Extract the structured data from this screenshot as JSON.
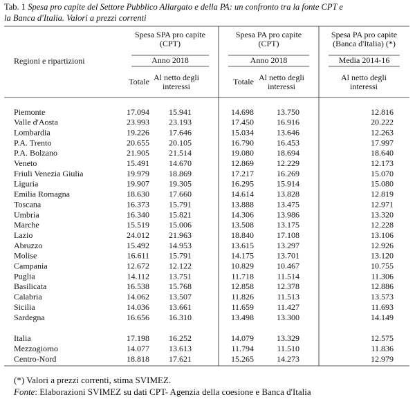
{
  "title": {
    "prefix": "Tab. 1",
    "line1": "Spesa pro capite del Settore Pubblico Allargato e della PA: un confronto tra la fonte CPT e",
    "line2": "la Banca d'Italia. Valori a prezzi correnti"
  },
  "table": {
    "row_header": "Regioni e ripartizioni",
    "groups": [
      {
        "title_lines": [
          "Spesa SPA pro capite",
          "(CPT)"
        ],
        "period": "Anno 2018",
        "columns": [
          [
            "Totale"
          ],
          [
            "Al netto degli",
            "interessi"
          ]
        ]
      },
      {
        "title_lines": [
          "Spesa PA pro capite",
          "(CPT)"
        ],
        "period": "Anno 2018",
        "columns": [
          [
            "Totale"
          ],
          [
            "Al netto degli",
            "interessi"
          ]
        ]
      },
      {
        "title_lines": [
          "Spesa PA pro capite",
          "(Banca d'Italia) (*)"
        ],
        "period": "Media 2014-16",
        "columns": [
          [
            "Al netto degli",
            "interessi"
          ]
        ]
      }
    ],
    "rows": [
      [
        "Piemonte",
        "17.094",
        "15.941",
        "14.698",
        "13.750",
        "12.816"
      ],
      [
        "Valle d'Aosta",
        "23.993",
        "23.193",
        "17.450",
        "16.916",
        "20.222"
      ],
      [
        "Lombardia",
        "19.226",
        "17.646",
        "15.034",
        "13.646",
        "12.263"
      ],
      [
        "P.A. Trento",
        "20.655",
        "20.105",
        "16.790",
        "16.453",
        "17.997"
      ],
      [
        "P.A. Bolzano",
        "21.905",
        "21.514",
        "19.080",
        "18.694",
        "18.640"
      ],
      [
        "Veneto",
        "15.491",
        "14.670",
        "12.869",
        "12.229",
        "12.173"
      ],
      [
        "Friuli Venezia Giulia",
        "19.979",
        "18.869",
        "17.217",
        "16.269",
        "15.070"
      ],
      [
        "Liguria",
        "19.907",
        "19.305",
        "16.295",
        "15.914",
        "15.080"
      ],
      [
        "Emilia Romagna",
        "18.630",
        "17.660",
        "14.614",
        "13.828",
        "12.819"
      ],
      [
        "Toscana",
        "16.373",
        "15.791",
        "13.888",
        "13.475",
        "12.971"
      ],
      [
        "Umbria",
        "16.340",
        "15.821",
        "14.306",
        "13.986",
        "13.320"
      ],
      [
        "Marche",
        "15.519",
        "15.006",
        "13.508",
        "13.175",
        "12.228"
      ],
      [
        "Lazio",
        "24.012",
        "21.963",
        "18.840",
        "17.108",
        "13.106"
      ],
      [
        "Abruzzo",
        "15.492",
        "14.953",
        "13.615",
        "13.297",
        "12.926"
      ],
      [
        "Molise",
        "16.611",
        "15.791",
        "14.175",
        "13.701",
        "13.120"
      ],
      [
        "Campania",
        "12.672",
        "12.122",
        "10.829",
        "10.467",
        "10.755"
      ],
      [
        "Puglia",
        "14.112",
        "13.751",
        "11.718",
        "11.514",
        "11.306"
      ],
      [
        "Basilicata",
        "16.538",
        "15.768",
        "12.858",
        "12.378",
        "12.886"
      ],
      [
        "Calabria",
        "14.062",
        "13.507",
        "11.826",
        "11.513",
        "13.573"
      ],
      [
        "Sicilia",
        "14.036",
        "13.661",
        "11.659",
        "11.427",
        "11.693"
      ],
      [
        "Sardegna",
        "16.656",
        "16.310",
        "13.498",
        "13.300",
        "14.149"
      ]
    ],
    "summary_rows": [
      [
        "Italia",
        "17.198",
        "16.252",
        "14.079",
        "13.329",
        "12.575"
      ],
      [
        "Mezzogiorno",
        "14.077",
        "13.613",
        "11.794",
        "11.510",
        "11.836"
      ],
      [
        "Centro-Nord",
        "18.818",
        "17.621",
        "15.265",
        "14.273",
        "12.979"
      ]
    ]
  },
  "notes": {
    "estimate": "(*) Valori a prezzi correnti, stima SVIMEZ.",
    "source_label": "Fonte",
    "source_text": ": Elaborazioni SVIMEZ su dati CPT- Agenzia della coesione e Banca d'Italia"
  }
}
